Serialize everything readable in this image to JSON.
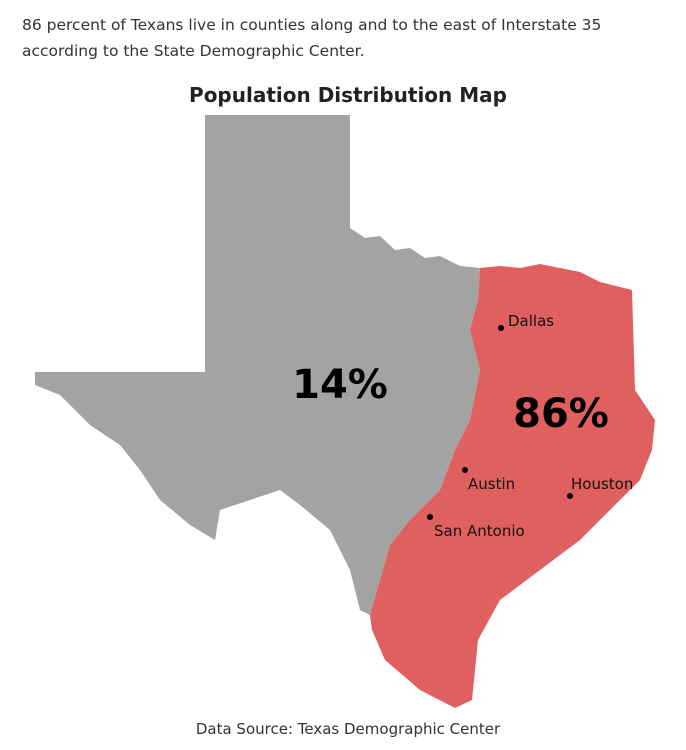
{
  "intro": "86 percent of Texans live in counties along and to the east of Interstate 35 according to the State Demographic Center.",
  "map": {
    "title": "Population Distribution Map",
    "regions": [
      {
        "label": "14%"
      },
      {
        "label": "86%"
      }
    ],
    "cities": [
      "Dallas",
      "Austin",
      "Houston",
      "San Antonio"
    ],
    "source": "Data Source: Texas Demographic Center"
  }
}
